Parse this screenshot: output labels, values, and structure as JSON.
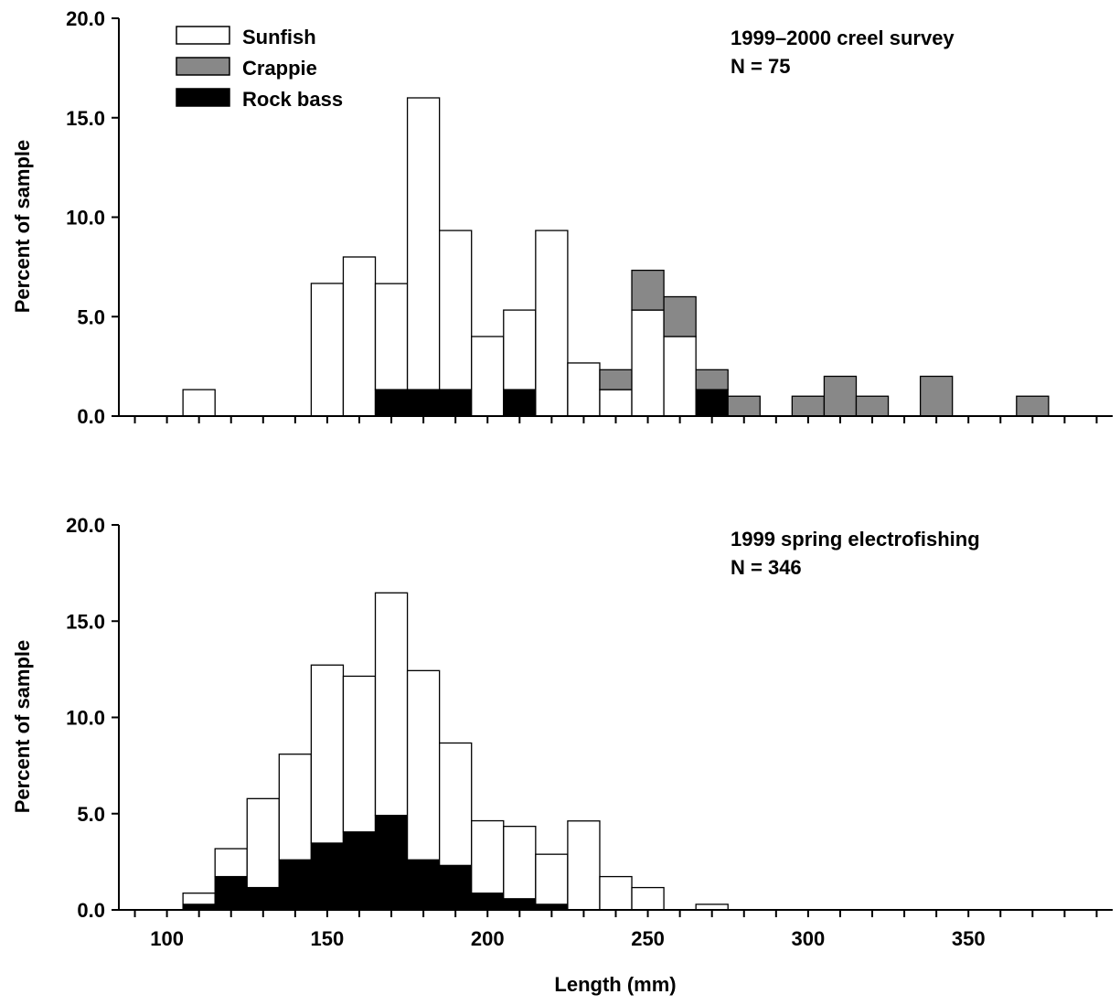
{
  "chart_data": [
    {
      "type": "bar",
      "stacked": true,
      "annotation": [
        "1999–2000 creel survey",
        "N = 75"
      ],
      "ylabel": "Percent of sample",
      "xlabel": "",
      "ylim": [
        0,
        20
      ],
      "yticks": [
        "0.0",
        "5.0",
        "10.0",
        "15.0",
        "20.0"
      ],
      "xlim": [
        85,
        395
      ],
      "bin_width": 10,
      "bin_starts": [
        105,
        115,
        125,
        135,
        145,
        155,
        165,
        175,
        185,
        195,
        205,
        215,
        225,
        235,
        245,
        255,
        265,
        275,
        285,
        295,
        305,
        315,
        325,
        335,
        345,
        355,
        365
      ],
      "series": [
        {
          "name": "Rock bass",
          "color": "#000000",
          "values": [
            0,
            0,
            0,
            0,
            0,
            0,
            1.33,
            1.33,
            1.33,
            0,
            1.33,
            0,
            0,
            0,
            0,
            0,
            1.33,
            0,
            0,
            0,
            0,
            0,
            0,
            0,
            0,
            0,
            0
          ]
        },
        {
          "name": "Sunfish",
          "color": "#ffffff",
          "values": [
            1.33,
            0,
            0,
            0,
            6.67,
            8.0,
            5.33,
            14.67,
            8.0,
            4.0,
            4.0,
            9.33,
            2.67,
            1.33,
            5.33,
            4.0,
            0,
            0,
            0,
            0,
            0,
            0,
            0,
            0,
            0,
            0,
            0
          ]
        },
        {
          "name": "Crappie",
          "color": "#888888",
          "values": [
            0,
            0,
            0,
            0,
            0,
            0,
            0,
            0,
            0,
            0,
            0,
            0,
            0,
            1.0,
            2.0,
            2.0,
            1.0,
            1.0,
            0,
            1.0,
            2.0,
            1.0,
            0,
            2.0,
            0,
            0,
            1.0
          ]
        }
      ],
      "legend": {
        "position": "top-left",
        "entries": [
          {
            "label": "Sunfish",
            "color": "#ffffff"
          },
          {
            "label": "Crappie",
            "color": "#888888"
          },
          {
            "label": "Rock bass",
            "color": "#000000"
          }
        ]
      }
    },
    {
      "type": "bar",
      "stacked": true,
      "annotation": [
        "1999 spring electrofishing",
        "N = 346"
      ],
      "ylabel": "Percent of sample",
      "xlabel": "Length (mm)",
      "ylim": [
        0,
        20
      ],
      "yticks": [
        "0.0",
        "5.0",
        "10.0",
        "15.0",
        "20.0"
      ],
      "xlim": [
        85,
        395
      ],
      "xticks": [
        {
          "value": 100,
          "label": "100"
        },
        {
          "value": 150,
          "label": "150"
        },
        {
          "value": 200,
          "label": "200"
        },
        {
          "value": 250,
          "label": "250"
        },
        {
          "value": 300,
          "label": "300"
        },
        {
          "value": 350,
          "label": "350"
        }
      ],
      "bin_width": 10,
      "bin_starts": [
        105,
        115,
        125,
        135,
        145,
        155,
        165,
        175,
        185,
        195,
        205,
        215,
        225,
        235,
        245,
        255,
        265
      ],
      "series": [
        {
          "name": "Rock bass",
          "color": "#000000",
          "values": [
            0.29,
            1.73,
            1.16,
            2.6,
            3.47,
            4.05,
            4.91,
            2.6,
            2.31,
            0.87,
            0.58,
            0.29,
            0,
            0,
            0,
            0,
            0
          ]
        },
        {
          "name": "Sunfish",
          "color": "#ffffff",
          "values": [
            0.58,
            1.45,
            4.62,
            5.49,
            9.25,
            8.09,
            11.56,
            9.83,
            6.36,
            3.76,
            3.76,
            2.6,
            4.62,
            1.73,
            1.16,
            0,
            0.29
          ]
        }
      ]
    }
  ]
}
